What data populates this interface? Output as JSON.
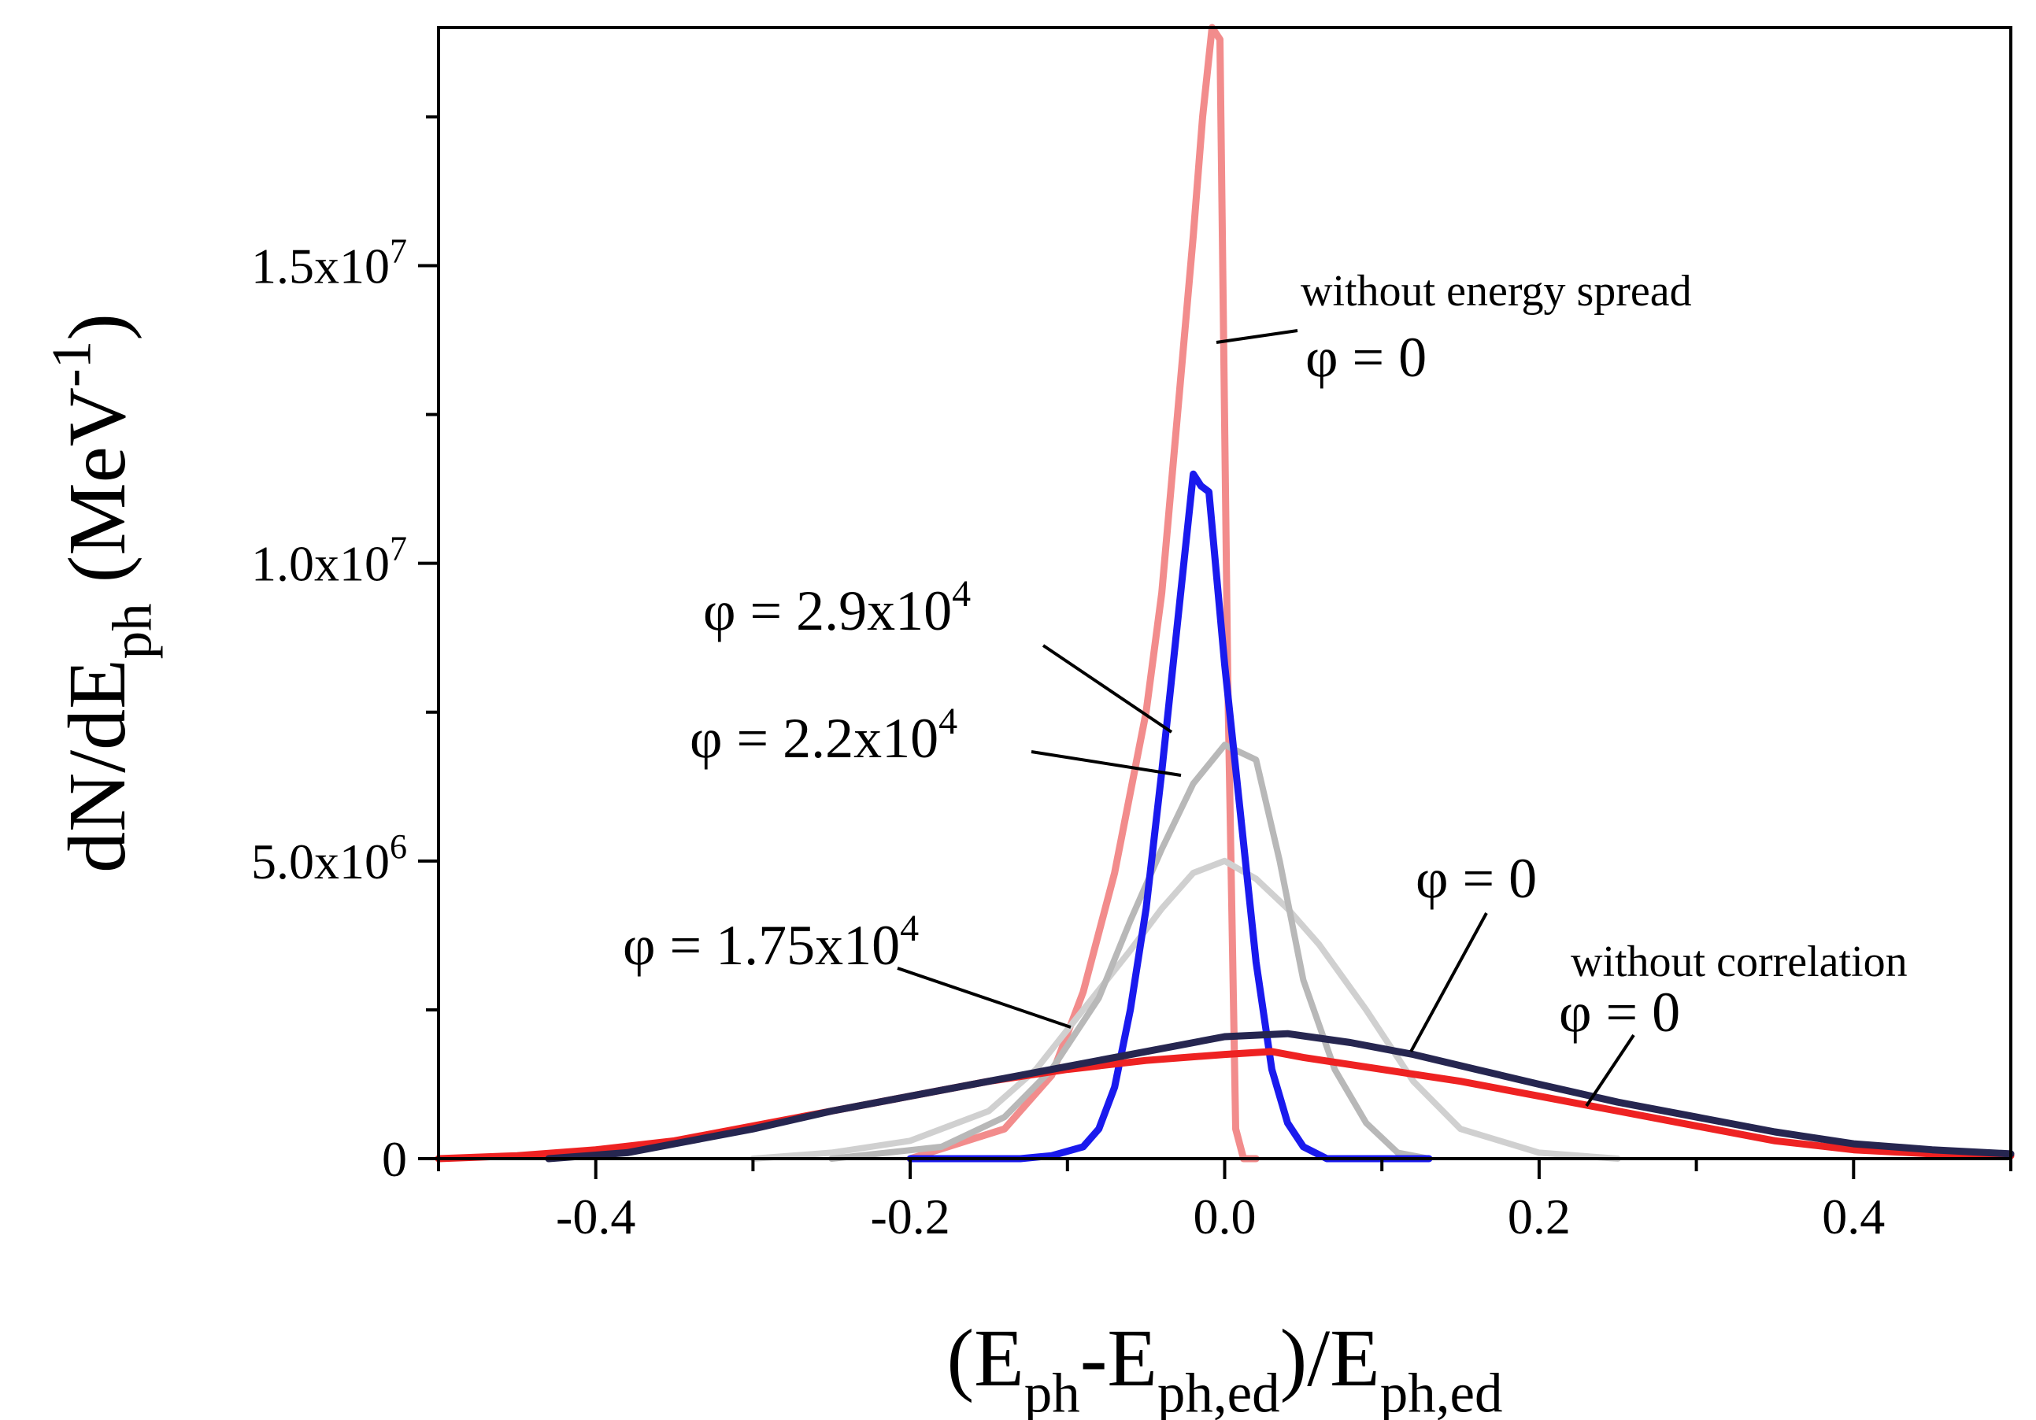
{
  "chart_data": {
    "type": "line",
    "title": "",
    "xlabel": {
      "parts": [
        {
          "t": "(E",
          "s": "n"
        },
        {
          "t": "ph",
          "s": "sub"
        },
        {
          "t": "-E",
          "s": "n"
        },
        {
          "t": "ph,ed",
          "s": "sub"
        },
        {
          "t": ")/E",
          "s": "n"
        },
        {
          "t": "ph,ed",
          "s": "sub"
        }
      ]
    },
    "ylabel": {
      "parts": [
        {
          "t": "dN/dE",
          "s": "n"
        },
        {
          "t": "ph",
          "s": "sub"
        },
        {
          "t": " (MeV",
          "s": "n"
        },
        {
          "t": "-1",
          "s": "sup"
        },
        {
          "t": ")",
          "s": "n"
        }
      ]
    },
    "xlim": [
      -0.5,
      0.5
    ],
    "ylim": [
      0,
      19000000
    ],
    "grid": false,
    "legend": "none",
    "xticks": [
      {
        "value": -0.4,
        "label": "-0.4"
      },
      {
        "value": -0.2,
        "label": "-0.2"
      },
      {
        "value": 0.0,
        "label": "0.0"
      },
      {
        "value": 0.2,
        "label": "0.2"
      },
      {
        "value": 0.4,
        "label": "0.4"
      }
    ],
    "yticks": [
      {
        "value": 0,
        "label": "0",
        "exp": ""
      },
      {
        "value": 5000000,
        "label": "5.0x10",
        "exp": "6"
      },
      {
        "value": 10000000,
        "label": "1.0x10",
        "exp": "7"
      },
      {
        "value": 15000000,
        "label": "1.5x10",
        "exp": "7"
      }
    ],
    "series": [
      {
        "color": "#f28c8c",
        "width": 9,
        "x": [
          -0.2,
          -0.14,
          -0.11,
          -0.09,
          -0.07,
          -0.05,
          -0.04,
          -0.03,
          -0.02,
          -0.014,
          -0.008,
          -0.003,
          0.002,
          0.007,
          0.012,
          0.02
        ],
        "y": [
          0,
          500000,
          1400000,
          2800000,
          4800000,
          7500000,
          9500000,
          12500000,
          15500000,
          17500000,
          19000000,
          18800000,
          8000000,
          500000,
          0,
          0
        ]
      },
      {
        "color": "#d0d0d0",
        "width": 8,
        "x": [
          -0.3,
          -0.25,
          -0.2,
          -0.15,
          -0.12,
          -0.09,
          -0.06,
          -0.04,
          -0.02,
          0.0,
          0.02,
          0.04,
          0.06,
          0.09,
          0.12,
          0.15,
          0.2,
          0.25
        ],
        "y": [
          0,
          100000,
          300000,
          800000,
          1500000,
          2500000,
          3500000,
          4200000,
          4800000,
          5000000,
          4700000,
          4200000,
          3600000,
          2500000,
          1300000,
          500000,
          100000,
          0
        ]
      },
      {
        "color": "#b8b8b8",
        "width": 8,
        "x": [
          -0.25,
          -0.18,
          -0.14,
          -0.11,
          -0.08,
          -0.06,
          -0.04,
          -0.02,
          0.0,
          0.02,
          0.035,
          0.05,
          0.07,
          0.09,
          0.11,
          0.13
        ],
        "y": [
          0,
          200000,
          700000,
          1500000,
          2700000,
          4000000,
          5200000,
          6300000,
          6950000,
          6700000,
          5000000,
          3000000,
          1500000,
          600000,
          100000,
          0
        ]
      },
      {
        "color": "#1a1aee",
        "width": 9,
        "x": [
          -0.2,
          -0.13,
          -0.11,
          -0.09,
          -0.08,
          -0.07,
          -0.06,
          -0.05,
          -0.04,
          -0.03,
          -0.02,
          -0.015,
          -0.01,
          0.0,
          0.01,
          0.02,
          0.03,
          0.04,
          0.05,
          0.065,
          0.13
        ],
        "y": [
          0,
          0,
          50000,
          200000,
          500000,
          1200000,
          2500000,
          4200000,
          6500000,
          9000000,
          11500000,
          11300000,
          11200000,
          8300000,
          5800000,
          3300000,
          1500000,
          600000,
          200000,
          0,
          0
        ]
      },
      {
        "color": "#ee2222",
        "width": 9,
        "x": [
          -0.5,
          -0.45,
          -0.4,
          -0.35,
          -0.3,
          -0.25,
          -0.2,
          -0.15,
          -0.1,
          -0.05,
          0.0,
          0.03,
          0.05,
          0.1,
          0.15,
          0.2,
          0.25,
          0.3,
          0.35,
          0.4,
          0.45,
          0.5
        ],
        "y": [
          0,
          50000,
          150000,
          300000,
          550000,
          800000,
          1050000,
          1300000,
          1500000,
          1650000,
          1750000,
          1800000,
          1700000,
          1500000,
          1300000,
          1050000,
          800000,
          550000,
          300000,
          150000,
          80000,
          50000
        ]
      },
      {
        "color": "#262650",
        "width": 9,
        "x": [
          -0.43,
          -0.38,
          -0.35,
          -0.3,
          -0.25,
          -0.2,
          -0.15,
          -0.1,
          -0.05,
          0.0,
          0.04,
          0.08,
          0.12,
          0.16,
          0.2,
          0.25,
          0.3,
          0.35,
          0.4,
          0.45,
          0.5
        ],
        "y": [
          0,
          100000,
          250000,
          500000,
          800000,
          1050000,
          1300000,
          1550000,
          1800000,
          2050000,
          2100000,
          1950000,
          1750000,
          1500000,
          1250000,
          950000,
          700000,
          450000,
          250000,
          150000,
          80000
        ]
      }
    ],
    "annotations": [
      {
        "text": "without energy spread",
        "size": 56
      },
      {
        "text": "φ = 0",
        "size": 72
      },
      {
        "text": "φ = 2.9x10",
        "exp": "4",
        "size": 72
      },
      {
        "text": "φ = 2.2x10",
        "exp": "4",
        "size": 72
      },
      {
        "text": "φ = 0",
        "size": 72
      },
      {
        "text": "φ = 1.75x10",
        "exp": "4",
        "size": 72
      },
      {
        "text": "without correlation",
        "size": 56
      },
      {
        "text": "φ = 0",
        "size": 72
      }
    ]
  }
}
